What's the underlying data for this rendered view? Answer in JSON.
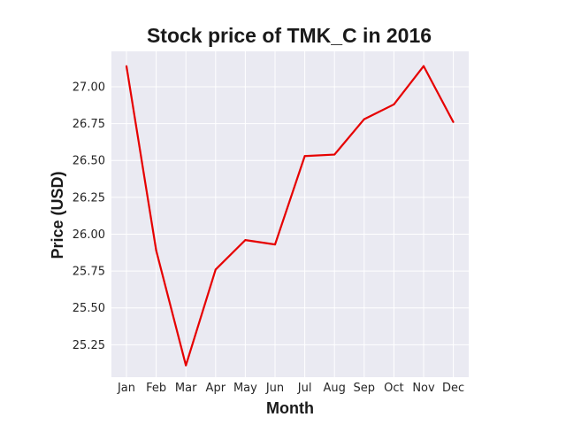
{
  "chart_data": {
    "type": "line",
    "title": "Stock price of TMK_C in 2016",
    "xlabel": "Month",
    "ylabel": "Price (USD)",
    "categories": [
      "Jan",
      "Feb",
      "Mar",
      "Apr",
      "May",
      "Jun",
      "Jul",
      "Aug",
      "Sep",
      "Oct",
      "Nov",
      "Dec"
    ],
    "series": [
      {
        "values": [
          27.14,
          25.89,
          25.11,
          25.76,
          25.96,
          25.93,
          26.53,
          26.54,
          26.78,
          26.88,
          27.14,
          26.76
        ],
        "color": "#e60000"
      }
    ],
    "yticks": [
      25.25,
      25.5,
      25.75,
      26.0,
      26.25,
      26.5,
      26.75,
      27.0
    ],
    "ytick_labels": [
      "25.25",
      "25.50",
      "25.75",
      "26.00",
      "26.25",
      "26.50",
      "26.75",
      "27.00"
    ],
    "ylim": [
      25.03,
      27.24
    ],
    "grid": true,
    "legend": false,
    "colors": {
      "plot_background": "#eaeaf2",
      "grid": "#ffffff",
      "line": "#e60000"
    }
  }
}
